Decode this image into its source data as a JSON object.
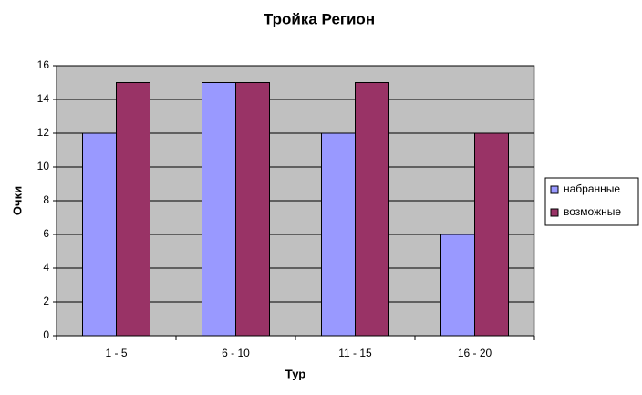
{
  "chart_data": {
    "type": "bar",
    "title": "Тройка Регион",
    "x_label": "Тур",
    "y_label": "Очки",
    "categories": [
      "1 - 5",
      "6 - 10",
      "11 - 15",
      "16 - 20"
    ],
    "series": [
      {
        "name": "набранные",
        "color": "#9999ff",
        "values": [
          12,
          15,
          12,
          6
        ]
      },
      {
        "name": "возможные",
        "color": "#993366",
        "values": [
          15,
          15,
          15,
          12
        ]
      }
    ],
    "ylim": [
      0,
      16
    ],
    "yticks": [
      0,
      2,
      4,
      6,
      8,
      10,
      12,
      14,
      16
    ],
    "grid": true,
    "legend": "right"
  }
}
